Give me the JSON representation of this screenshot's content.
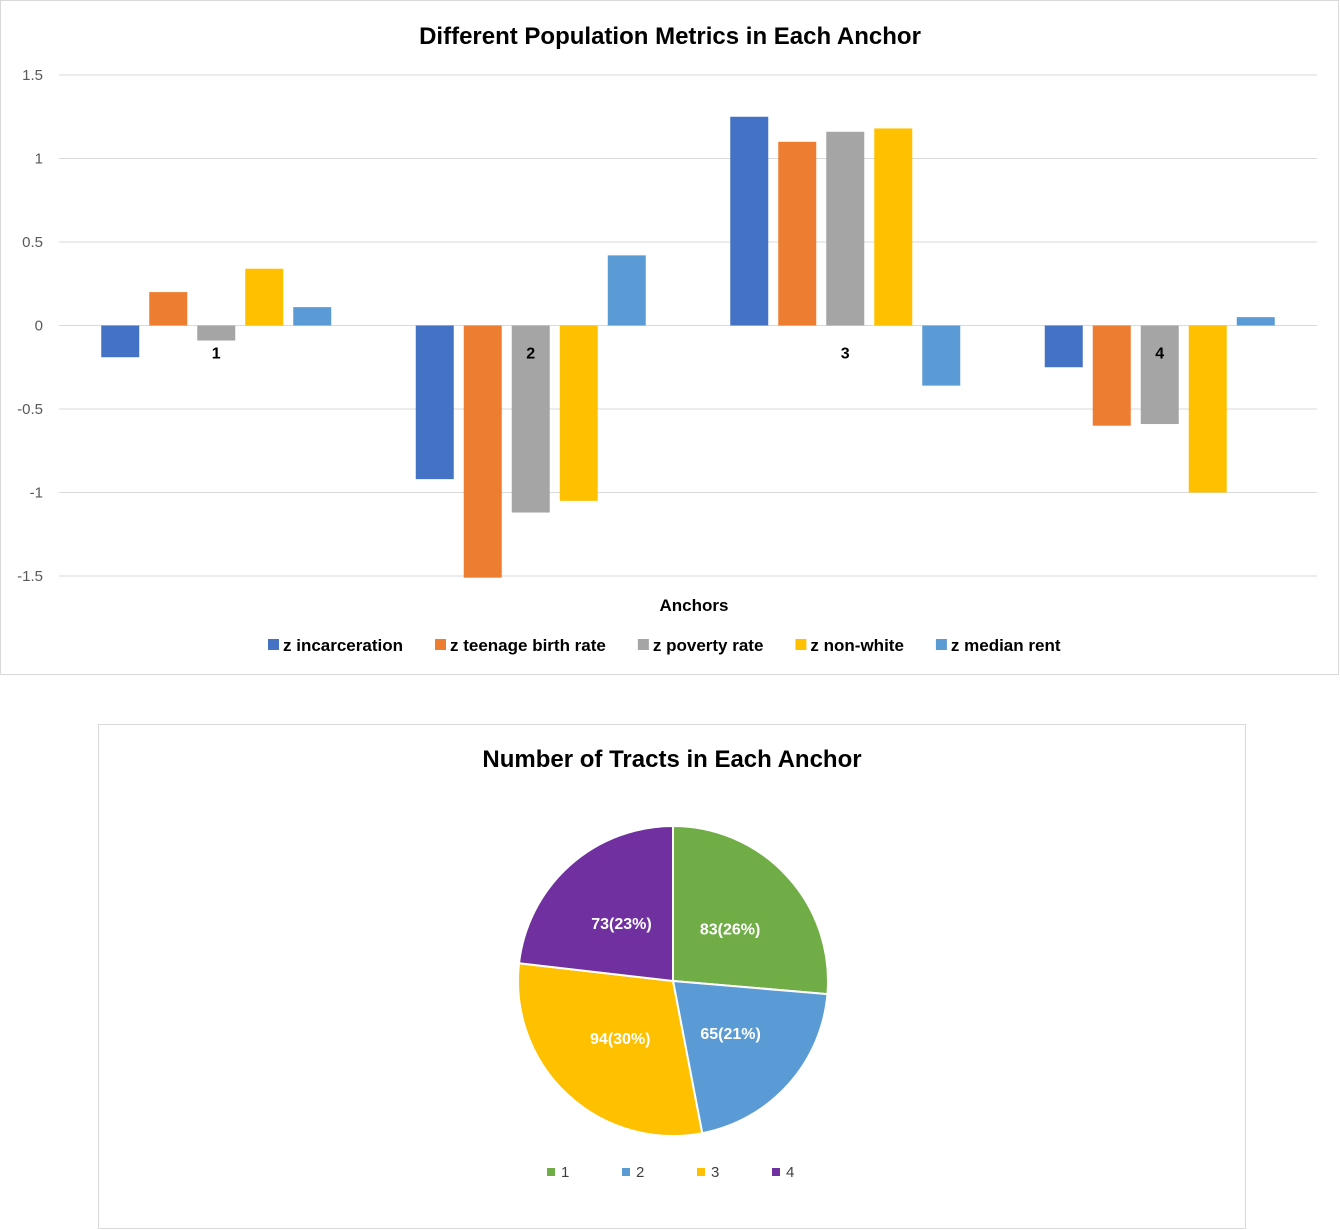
{
  "chart_data": [
    {
      "type": "bar",
      "title": "Different Population Metrics in Each Anchor",
      "xlabel": "Anchors",
      "ylabel": "",
      "ylim": [
        -1.5,
        1.5
      ],
      "yticks": [
        1.5,
        1,
        0.5,
        0,
        -0.5,
        -1,
        -1.5
      ],
      "yticklabels": [
        "1.5",
        "1",
        "0.5",
        "0",
        "-0.5",
        "-1",
        "-1.5"
      ],
      "grid": true,
      "legend": "bottom",
      "categories": [
        "1",
        "2",
        "3",
        "4"
      ],
      "series": [
        {
          "name": "z incarceration",
          "color": "#4472C4",
          "values": [
            -0.19,
            -0.92,
            1.25,
            -0.25
          ]
        },
        {
          "name": "z teenage birth rate",
          "color": "#ED7D31",
          "values": [
            0.2,
            -1.51,
            1.1,
            -0.6
          ]
        },
        {
          "name": "z poverty rate",
          "color": "#A5A5A5",
          "values": [
            -0.09,
            -1.12,
            1.16,
            -0.59
          ]
        },
        {
          "name": "z non-white",
          "color": "#FFC000",
          "values": [
            0.34,
            -1.05,
            1.18,
            -1.0
          ]
        },
        {
          "name": "z median rent",
          "color": "#5B9BD5",
          "values": [
            0.11,
            0.42,
            -0.36,
            0.05
          ]
        }
      ]
    },
    {
      "type": "pie",
      "title": "Number of Tracts in Each Anchor",
      "legend": "bottom",
      "slices": [
        {
          "label": "1",
          "value": 83,
          "data_label": "83(26%)",
          "color": "#70AD47"
        },
        {
          "label": "2",
          "value": 65,
          "data_label": "65(21%)",
          "color": "#5B9BD5"
        },
        {
          "label": "3",
          "value": 94,
          "data_label": "94(30%)",
          "color": "#FFC000"
        },
        {
          "label": "4",
          "value": 73,
          "data_label": "73(23%)",
          "color": "#7030A0"
        }
      ]
    }
  ]
}
